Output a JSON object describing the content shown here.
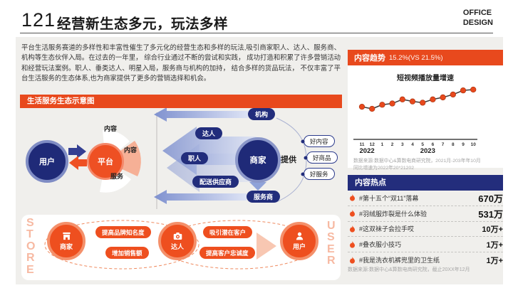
{
  "slide": {
    "number": "121",
    "title": "经营新生态多元，玩法多样",
    "brand_line1": "OFFICE",
    "brand_line2": "DESIGN",
    "intro": "平台生活服务赛道的多样性和丰富性催生了多元化的经营生态和多样的玩法,吸引商家职人、达人、服务商、机构等生态伙伴入局。在过去的一年里， 综合行业通过不断的尝试和实践， 成功打造和积累了许多营销活动和经营玩法案例。职人、垂类达人、明星入局，服务商与机构的加持， 结合多样的货品玩法， 不仅丰富了平台生活服务的生态体系,也为商家提供了更多的营销选择和机会。"
  },
  "ecosystem": {
    "title": "生活服务生态示意图",
    "user": "用户",
    "platform": "平台",
    "platform_top_label": "内容",
    "platform_right_label": "内容",
    "platform_bottom_label": "服务",
    "merchant": "商家",
    "org_pill": "机构",
    "daren_pill": "达人",
    "zhiren_pill": "职人",
    "delivery_pill": "配送供应商",
    "service_provider_pill": "服务商",
    "provide": "提供",
    "good_content": "好内容",
    "good_goods": "好商品",
    "good_service": "好服务"
  },
  "funnel": {
    "store_vertical": "STORE",
    "user_vertical": "USER",
    "merchant_label": "商家",
    "daren_label": "达人",
    "user_label": "用户",
    "pill_brand": "提高品牌知名度",
    "pill_sales": "增加销售额",
    "pill_attract": "吸引潜在客户",
    "pill_loyalty": "提高客户忠诚度"
  },
  "trend": {
    "header": "内容趋势",
    "header_value": "15.2%(VS 21.5%)",
    "footnote_line1": "数据来源:数据中心&算数电商研究院，2021月-203年年10月",
    "footnote_line2": "同比增速为2022年20*21202"
  },
  "chart_data": {
    "type": "line",
    "title": "短视频播放量增速",
    "x_labels": [
      "11",
      "12",
      "1",
      "2",
      "3",
      "4",
      "5",
      "6",
      "7",
      "8",
      "9",
      "10"
    ],
    "year_labels": [
      {
        "text": "2022",
        "position_index": 0.5
      },
      {
        "text": "2023",
        "position_index": 6.5
      }
    ],
    "values": [
      30,
      25,
      35,
      38,
      48,
      43,
      40,
      48,
      53,
      60,
      70,
      72
    ],
    "ylim": [
      0,
      100
    ],
    "grid": false,
    "legend": "none",
    "line_color": "#3a3a3a",
    "point_color": "#e8491d"
  },
  "hotspots": {
    "header": "内容热点",
    "items": [
      {
        "label": "#第十五个“双11”落幕",
        "value": "670万"
      },
      {
        "label": "#羽绒服炸裂是什么体验",
        "value": "531万"
      },
      {
        "label": "#这双袜子会拉手哎",
        "value": "10万+"
      },
      {
        "label": "#叠衣服小技巧",
        "value": "1万+"
      },
      {
        "label": "#我是洗衣机裤兜里的卫生纸",
        "value": "1万+"
      }
    ],
    "footnote": "数据来源:数据中心&算数电商研究院，截止20XX年12月"
  },
  "colors": {
    "accent_orange": "#e8491d",
    "navy": "#232d7c",
    "light_blue": "#8fa2d8",
    "bg_gray": "#f0efec"
  }
}
